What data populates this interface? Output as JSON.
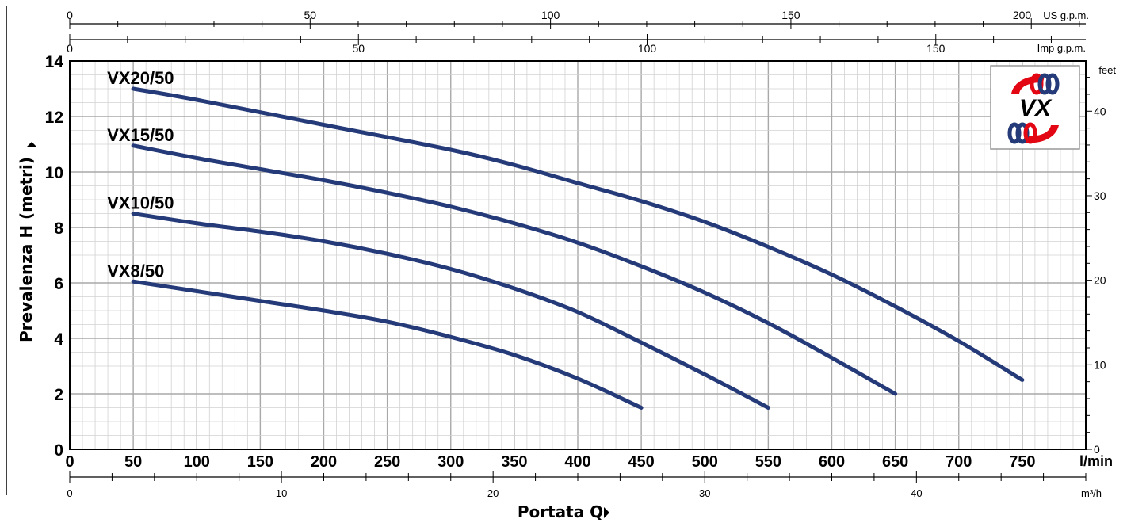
{
  "chart_data": {
    "type": "line",
    "title": "",
    "xlabel": "Portata Q",
    "ylabel": "Prevalenza H (metri)",
    "x_unit": "l/min",
    "xlim": [
      0,
      800
    ],
    "ylim": [
      0,
      14
    ],
    "x_ticks": [
      0,
      50,
      100,
      150,
      200,
      250,
      300,
      350,
      400,
      450,
      500,
      550,
      600,
      650,
      700,
      750
    ],
    "y_ticks": [
      0,
      2,
      4,
      6,
      8,
      10,
      12,
      14
    ],
    "grid": true,
    "line_color": "#253a78",
    "secondary_axes": {
      "us_gpm": {
        "label": "US g.p.m.",
        "ticks": [
          0,
          50,
          100,
          150,
          200
        ]
      },
      "imp_gpm": {
        "label": "Imp g.p.m.",
        "ticks": [
          0,
          50,
          100,
          150
        ]
      },
      "m3h": {
        "label": "m³/h",
        "ticks": [
          0,
          10,
          20,
          30,
          40
        ]
      },
      "feet": {
        "label": "feet",
        "ticks": [
          0,
          10,
          20,
          30,
          40
        ]
      }
    },
    "series": [
      {
        "name": "VX20/50",
        "x": [
          50,
          100,
          200,
          300,
          350,
          400,
          450,
          500,
          550,
          600,
          650,
          700,
          750
        ],
        "y": [
          13.0,
          12.6,
          11.7,
          10.8,
          10.25,
          9.6,
          8.95,
          8.2,
          7.3,
          6.3,
          5.15,
          3.9,
          2.5
        ]
      },
      {
        "name": "VX15/50",
        "x": [
          50,
          100,
          150,
          200,
          250,
          300,
          350,
          400,
          450,
          500,
          550,
          600,
          650
        ],
        "y": [
          10.95,
          10.5,
          10.1,
          9.7,
          9.25,
          8.75,
          8.15,
          7.45,
          6.6,
          5.65,
          4.55,
          3.3,
          2.0
        ]
      },
      {
        "name": "VX10/50",
        "x": [
          50,
          100,
          150,
          200,
          250,
          300,
          350,
          400,
          450,
          500,
          550
        ],
        "y": [
          8.5,
          8.15,
          7.85,
          7.5,
          7.05,
          6.5,
          5.8,
          4.95,
          3.85,
          2.7,
          1.5
        ]
      },
      {
        "name": "VX8/50",
        "x": [
          50,
          100,
          150,
          200,
          250,
          300,
          350,
          400,
          450
        ],
        "y": [
          6.05,
          5.7,
          5.35,
          5.0,
          4.6,
          4.05,
          3.4,
          2.55,
          1.5
        ]
      }
    ]
  },
  "logo": {
    "text": "VX",
    "color_red": "#e30613",
    "color_blue": "#253a78"
  }
}
